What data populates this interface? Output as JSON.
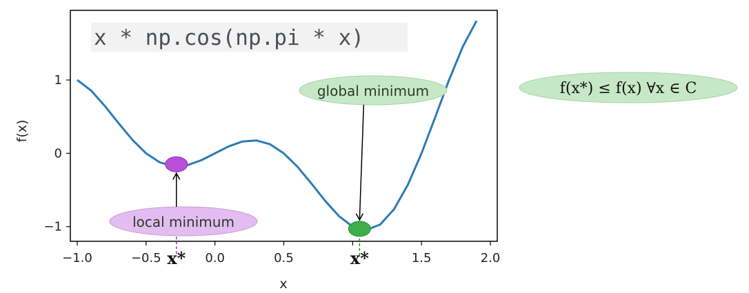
{
  "chart_data": {
    "type": "line",
    "title": "x * np.cos(np.pi * x)",
    "xlabel": "x",
    "ylabel": "f(x)",
    "xlim": [
      -1.05,
      2.05
    ],
    "ylim": [
      -1.2,
      1.95
    ],
    "xticks": [
      -1.0,
      -0.5,
      0.0,
      0.5,
      1.0,
      1.5,
      2.0
    ],
    "xtick_labels": [
      "−1.0",
      "−0.5",
      "0.0",
      "0.5",
      "",
      "1.5",
      "2.0"
    ],
    "yticks": [
      1,
      0,
      -1
    ],
    "ytick_labels": [
      "1",
      "0",
      "−1"
    ],
    "grid": false,
    "series": [
      {
        "color": "#2c7bb6",
        "x": [
          -1.0,
          -0.9,
          -0.8,
          -0.7,
          -0.6,
          -0.5,
          -0.4,
          -0.3,
          -0.2,
          -0.1,
          0.0,
          0.1,
          0.2,
          0.3,
          0.4,
          0.5,
          0.6,
          0.7,
          0.8,
          0.9,
          1.0,
          1.1,
          1.2,
          1.3,
          1.4,
          1.5,
          1.6,
          1.7,
          1.8,
          1.9
        ],
        "y": [
          1.0,
          0.856,
          0.647,
          0.411,
          0.185,
          0.0,
          -0.124,
          -0.176,
          -0.162,
          -0.095,
          0.0,
          0.095,
          0.162,
          0.176,
          0.124,
          0.0,
          -0.185,
          -0.411,
          -0.647,
          -0.856,
          -1.0,
          -1.046,
          -0.971,
          -0.764,
          -0.433,
          0.0,
          0.494,
          1.0,
          1.456,
          1.807
        ]
      }
    ]
  },
  "annotations": {
    "local_label": "local minimum",
    "local_point": {
      "x": -0.28,
      "y": -0.15,
      "color": "#b84fd6"
    },
    "global_label": "global minimum",
    "global_point": {
      "x": 1.05,
      "y": -1.03,
      "color": "#3cae4a"
    },
    "xstar_local": "x*",
    "xstar_global": "x*",
    "formula": "f(x*) ≤ f(x)    ∀x ∈ C"
  },
  "colors": {
    "line": "#2c7bb6",
    "local_fill": "#e3bdf0",
    "global_fill": "#c6e8c6",
    "global_point": "#3cae4a",
    "local_point": "#b84fd6"
  }
}
